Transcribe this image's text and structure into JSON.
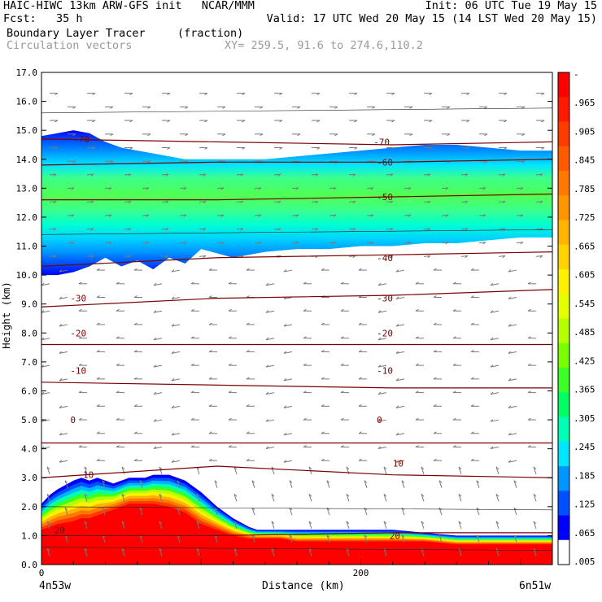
{
  "header": {
    "line1_left": "HAIC-HIWC 13km ARW-GFS init   NCAR/MMM",
    "line1_right": "Init: 06 UTC Tue 19 May 15",
    "fcst": "Fcst:   35 h",
    "valid": "Valid: 17 UTC Wed 20 May 15 (14 LST Wed 20 May 15)",
    "field_name": "Boundary Layer Tracer",
    "field_units": "(fraction)",
    "vector_label": "Circulation vectors",
    "xy_label": "XY= 259.5, 91.6 to 274.6,110.2"
  },
  "chart_data": {
    "type": "heatmap",
    "title": "Boundary Layer Tracer (fraction)",
    "xlabel": "Distance (km)",
    "ylabel": "Height (km)",
    "xlim": [
      0,
      320
    ],
    "ylim": [
      0,
      17
    ],
    "x_ticks": [
      0,
      200
    ],
    "y_ticks": [
      "0.0",
      "1.0",
      "2.0",
      "3.0",
      "4.0",
      "5.0",
      "6.0",
      "7.0",
      "8.0",
      "9.0",
      "10.0",
      "11.0",
      "12.0",
      "13.0",
      "14.0",
      "15.0",
      "16.0",
      "17.0"
    ],
    "x_end_labels": {
      "left": "4n53w",
      "right": "6n51w"
    },
    "colorbar": {
      "labels": [
        "-",
        ".965",
        ".905",
        ".845",
        ".785",
        ".725",
        ".665",
        ".605",
        ".545",
        ".485",
        ".425",
        ".365",
        ".305",
        ".245",
        ".185",
        ".125",
        ".065",
        ".005"
      ],
      "colors": [
        "#ff0000",
        "#ff1a00",
        "#ff3c00",
        "#ff5a00",
        "#ff7800",
        "#ff9600",
        "#ffb400",
        "#ffd200",
        "#fff000",
        "#e6ff00",
        "#b4ff00",
        "#78ff00",
        "#3cff28",
        "#00ff64",
        "#00ffb4",
        "#00e6ff",
        "#0096ff",
        "#0050ff",
        "#0000ff",
        "#ffffff"
      ]
    },
    "regions": [
      {
        "name": "upper-layer",
        "x": [
          0,
          10,
          20,
          30,
          40,
          50,
          60,
          70,
          80,
          90,
          100,
          120,
          140,
          160,
          180,
          200,
          220,
          240,
          260,
          280,
          300,
          320
        ],
        "top": [
          14.8,
          14.9,
          15.0,
          14.9,
          14.6,
          14.4,
          14.3,
          14.2,
          14.1,
          14.0,
          14.0,
          14.0,
          14.0,
          14.1,
          14.2,
          14.3,
          14.4,
          14.5,
          14.5,
          14.4,
          14.3,
          14.3
        ],
        "bottom": [
          10.0,
          10.0,
          10.1,
          10.3,
          10.6,
          10.3,
          10.5,
          10.2,
          10.6,
          10.4,
          10.9,
          10.6,
          10.8,
          10.9,
          10.9,
          11.0,
          11.0,
          11.1,
          11.1,
          11.2,
          11.3,
          11.3
        ]
      },
      {
        "name": "boundary-layer",
        "x": [
          0,
          5,
          10,
          20,
          25,
          30,
          35,
          40,
          45,
          50,
          55,
          60,
          65,
          70,
          80,
          90,
          100,
          110,
          120,
          130,
          135,
          140,
          150,
          160,
          180,
          200,
          220,
          240,
          260,
          280,
          300,
          320
        ],
        "top": [
          2.1,
          2.4,
          2.6,
          2.9,
          3.0,
          2.9,
          3.0,
          2.9,
          2.8,
          2.9,
          3.0,
          3.0,
          3.0,
          3.1,
          3.1,
          2.9,
          2.5,
          2.0,
          1.6,
          1.3,
          1.2,
          1.2,
          1.2,
          1.2,
          1.2,
          1.2,
          1.2,
          1.1,
          1.0,
          1.0,
          1.0,
          1.0
        ],
        "core_top": [
          1.2,
          1.3,
          1.4,
          1.5,
          1.6,
          1.6,
          1.7,
          1.8,
          1.9,
          2.0,
          2.1,
          2.1,
          2.1,
          2.1,
          2.0,
          1.8,
          1.4,
          1.2,
          1.0,
          0.9,
          0.9,
          0.9,
          0.9,
          0.8,
          0.8,
          0.8,
          0.8,
          0.8,
          0.7,
          0.7,
          0.7,
          0.7
        ]
      }
    ],
    "temperature_contours": [
      {
        "level": "-70",
        "y": [
          14.7,
          14.6,
          14.5,
          14.6
        ]
      },
      {
        "level": "-60",
        "y": [
          13.8,
          13.9,
          13.9,
          14.0
        ]
      },
      {
        "level": "-50",
        "y": [
          12.6,
          12.6,
          12.7,
          12.8
        ]
      },
      {
        "level": "-40",
        "y": [
          10.3,
          10.6,
          10.7,
          10.8
        ]
      },
      {
        "level": "-30",
        "y": [
          8.9,
          9.2,
          9.3,
          9.5
        ]
      },
      {
        "level": "-20",
        "y": [
          7.6,
          7.6,
          7.6,
          7.6
        ]
      },
      {
        "level": "-10",
        "y": [
          6.3,
          6.2,
          6.1,
          6.1
        ]
      },
      {
        "level": "0",
        "y": [
          4.2,
          4.2,
          4.2,
          4.2
        ]
      },
      {
        "level": "10",
        "y": [
          3.0,
          3.4,
          3.1,
          3.0
        ]
      },
      {
        "level": "20",
        "y": [
          1.0,
          1.0,
          1.1,
          1.1
        ]
      }
    ],
    "contour_labels": [
      {
        "text": "-70",
        "x": 20,
        "y": 14.7
      },
      {
        "text": "-70",
        "x": 208,
        "y": 14.6
      },
      {
        "text": "-60",
        "x": 210,
        "y": 13.9
      },
      {
        "text": "-50",
        "x": 210,
        "y": 12.7
      },
      {
        "text": "-40",
        "x": 210,
        "y": 10.6
      },
      {
        "text": "-30",
        "x": 18,
        "y": 9.2
      },
      {
        "text": "-30",
        "x": 210,
        "y": 9.2
      },
      {
        "text": "-20",
        "x": 18,
        "y": 8.0
      },
      {
        "text": "-20",
        "x": 210,
        "y": 8.0
      },
      {
        "text": "-10",
        "x": 18,
        "y": 6.7
      },
      {
        "text": "-10",
        "x": 210,
        "y": 6.7
      },
      {
        "text": "0",
        "x": 18,
        "y": 5.0
      },
      {
        "text": "0",
        "x": 210,
        "y": 5.0
      },
      {
        "text": "10",
        "x": 26,
        "y": 3.1
      },
      {
        "text": "10",
        "x": 220,
        "y": 3.5
      },
      {
        "text": "20",
        "x": 8,
        "y": 1.2
      },
      {
        "text": "20",
        "x": 218,
        "y": 1.0
      }
    ]
  }
}
